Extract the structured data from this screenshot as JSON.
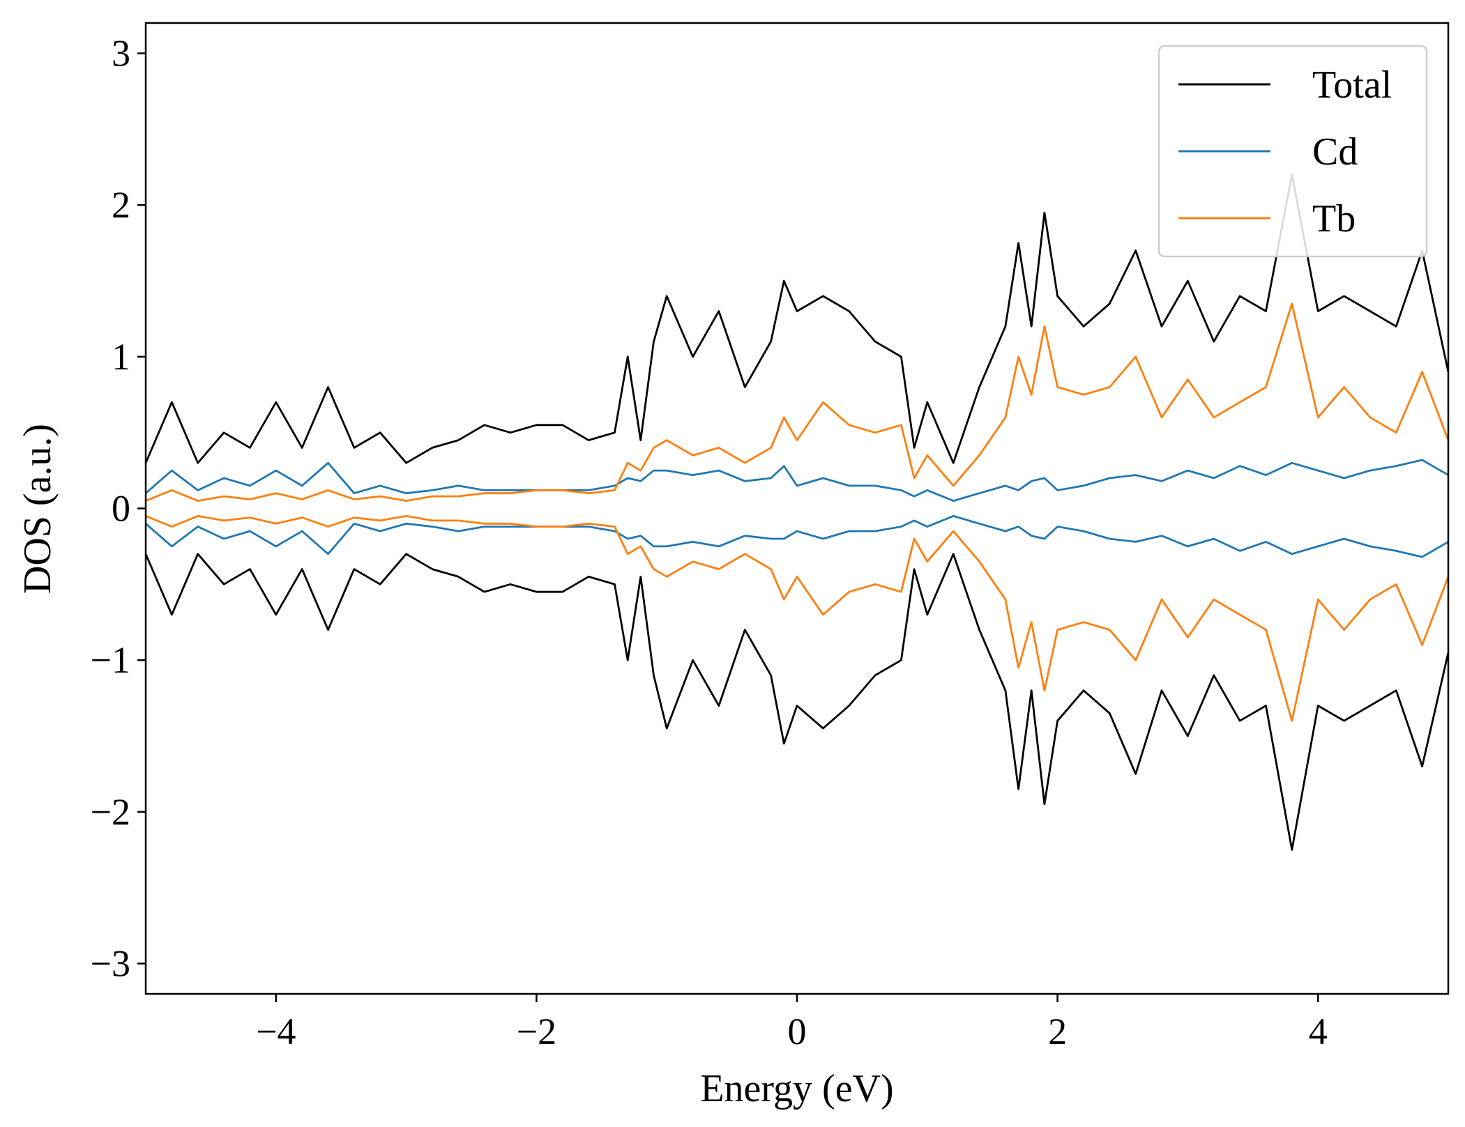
{
  "chart_data": {
    "type": "line",
    "title": "",
    "xlabel": "Energy (eV)",
    "ylabel": "DOS (a.u.)",
    "xlim": [
      -5,
      5
    ],
    "ylim": [
      -3.2,
      3.2
    ],
    "xticks": [
      -4,
      -2,
      0,
      2,
      4
    ],
    "yticks": [
      -3,
      -2,
      -1,
      0,
      1,
      2,
      3
    ],
    "xtick_labels": [
      "−4",
      "−2",
      "0",
      "2",
      "4"
    ],
    "ytick_labels": [
      "−3",
      "−2",
      "−1",
      "0",
      "1",
      "2",
      "3"
    ],
    "grid": false,
    "legend_position": "top-right",
    "x": [
      -5.0,
      -4.8,
      -4.6,
      -4.4,
      -4.2,
      -4.0,
      -3.8,
      -3.6,
      -3.4,
      -3.2,
      -3.0,
      -2.8,
      -2.6,
      -2.4,
      -2.2,
      -2.0,
      -1.8,
      -1.6,
      -1.4,
      -1.3,
      -1.2,
      -1.1,
      -1.0,
      -0.8,
      -0.6,
      -0.4,
      -0.2,
      -0.1,
      0.0,
      0.2,
      0.4,
      0.6,
      0.8,
      0.9,
      1.0,
      1.2,
      1.4,
      1.6,
      1.7,
      1.8,
      1.9,
      2.0,
      2.2,
      2.4,
      2.6,
      2.8,
      3.0,
      3.2,
      3.4,
      3.6,
      3.8,
      4.0,
      4.2,
      4.4,
      4.6,
      4.8,
      5.0
    ],
    "series": [
      {
        "name": "Total",
        "color": "#000000",
        "up": [
          0.3,
          0.7,
          0.3,
          0.5,
          0.4,
          0.7,
          0.4,
          0.8,
          0.4,
          0.5,
          0.3,
          0.4,
          0.45,
          0.55,
          0.5,
          0.55,
          0.55,
          0.45,
          0.5,
          1.0,
          0.45,
          1.1,
          1.4,
          1.0,
          1.3,
          0.8,
          1.1,
          1.5,
          1.3,
          1.4,
          1.3,
          1.1,
          1.0,
          0.4,
          0.7,
          0.3,
          0.8,
          1.2,
          1.75,
          1.2,
          1.95,
          1.4,
          1.2,
          1.35,
          1.7,
          1.2,
          1.5,
          1.1,
          1.4,
          1.3,
          2.2,
          1.3,
          1.4,
          1.3,
          1.2,
          1.7,
          0.9
        ],
        "down": [
          -0.3,
          -0.7,
          -0.3,
          -0.5,
          -0.4,
          -0.7,
          -0.4,
          -0.8,
          -0.4,
          -0.5,
          -0.3,
          -0.4,
          -0.45,
          -0.55,
          -0.5,
          -0.55,
          -0.55,
          -0.45,
          -0.5,
          -1.0,
          -0.45,
          -1.1,
          -1.45,
          -1.0,
          -1.3,
          -0.8,
          -1.1,
          -1.55,
          -1.3,
          -1.45,
          -1.3,
          -1.1,
          -1.0,
          -0.4,
          -0.7,
          -0.3,
          -0.8,
          -1.2,
          -1.85,
          -1.2,
          -1.95,
          -1.4,
          -1.2,
          -1.35,
          -1.75,
          -1.2,
          -1.5,
          -1.1,
          -1.4,
          -1.3,
          -2.25,
          -1.3,
          -1.4,
          -1.3,
          -1.2,
          -1.7,
          -0.95
        ]
      },
      {
        "name": "Cd",
        "color": "#1f77b4",
        "up": [
          0.1,
          0.25,
          0.12,
          0.2,
          0.15,
          0.25,
          0.15,
          0.3,
          0.1,
          0.15,
          0.1,
          0.12,
          0.15,
          0.12,
          0.12,
          0.12,
          0.12,
          0.12,
          0.15,
          0.2,
          0.18,
          0.25,
          0.25,
          0.22,
          0.25,
          0.18,
          0.2,
          0.28,
          0.15,
          0.2,
          0.15,
          0.15,
          0.12,
          0.08,
          0.12,
          0.05,
          0.1,
          0.15,
          0.12,
          0.18,
          0.2,
          0.12,
          0.15,
          0.2,
          0.22,
          0.18,
          0.25,
          0.2,
          0.28,
          0.22,
          0.3,
          0.25,
          0.2,
          0.25,
          0.28,
          0.32,
          0.22
        ],
        "down": [
          -0.1,
          -0.25,
          -0.12,
          -0.2,
          -0.15,
          -0.25,
          -0.15,
          -0.3,
          -0.1,
          -0.15,
          -0.1,
          -0.12,
          -0.15,
          -0.12,
          -0.12,
          -0.12,
          -0.12,
          -0.12,
          -0.15,
          -0.2,
          -0.18,
          -0.25,
          -0.25,
          -0.22,
          -0.25,
          -0.18,
          -0.2,
          -0.2,
          -0.15,
          -0.2,
          -0.15,
          -0.15,
          -0.12,
          -0.08,
          -0.12,
          -0.05,
          -0.1,
          -0.15,
          -0.12,
          -0.18,
          -0.2,
          -0.12,
          -0.15,
          -0.2,
          -0.22,
          -0.18,
          -0.25,
          -0.2,
          -0.28,
          -0.22,
          -0.3,
          -0.25,
          -0.2,
          -0.25,
          -0.28,
          -0.32,
          -0.22
        ]
      },
      {
        "name": "Tb",
        "color": "#ff7f0e",
        "up": [
          0.05,
          0.12,
          0.05,
          0.08,
          0.06,
          0.1,
          0.06,
          0.12,
          0.06,
          0.08,
          0.05,
          0.08,
          0.08,
          0.1,
          0.1,
          0.12,
          0.12,
          0.1,
          0.12,
          0.3,
          0.25,
          0.4,
          0.45,
          0.35,
          0.4,
          0.3,
          0.4,
          0.6,
          0.45,
          0.7,
          0.55,
          0.5,
          0.55,
          0.2,
          0.35,
          0.15,
          0.35,
          0.6,
          1.0,
          0.75,
          1.2,
          0.8,
          0.75,
          0.8,
          1.0,
          0.6,
          0.85,
          0.6,
          0.7,
          0.8,
          1.35,
          0.6,
          0.8,
          0.6,
          0.5,
          0.9,
          0.45
        ],
        "down": [
          -0.05,
          -0.12,
          -0.05,
          -0.08,
          -0.06,
          -0.1,
          -0.06,
          -0.12,
          -0.06,
          -0.08,
          -0.05,
          -0.08,
          -0.08,
          -0.1,
          -0.1,
          -0.12,
          -0.12,
          -0.1,
          -0.12,
          -0.3,
          -0.25,
          -0.4,
          -0.45,
          -0.35,
          -0.4,
          -0.3,
          -0.4,
          -0.6,
          -0.45,
          -0.7,
          -0.55,
          -0.5,
          -0.55,
          -0.2,
          -0.35,
          -0.15,
          -0.35,
          -0.6,
          -1.05,
          -0.75,
          -1.2,
          -0.8,
          -0.75,
          -0.8,
          -1.0,
          -0.6,
          -0.85,
          -0.6,
          -0.7,
          -0.8,
          -1.4,
          -0.6,
          -0.8,
          -0.6,
          -0.5,
          -0.9,
          -0.45
        ]
      }
    ]
  }
}
